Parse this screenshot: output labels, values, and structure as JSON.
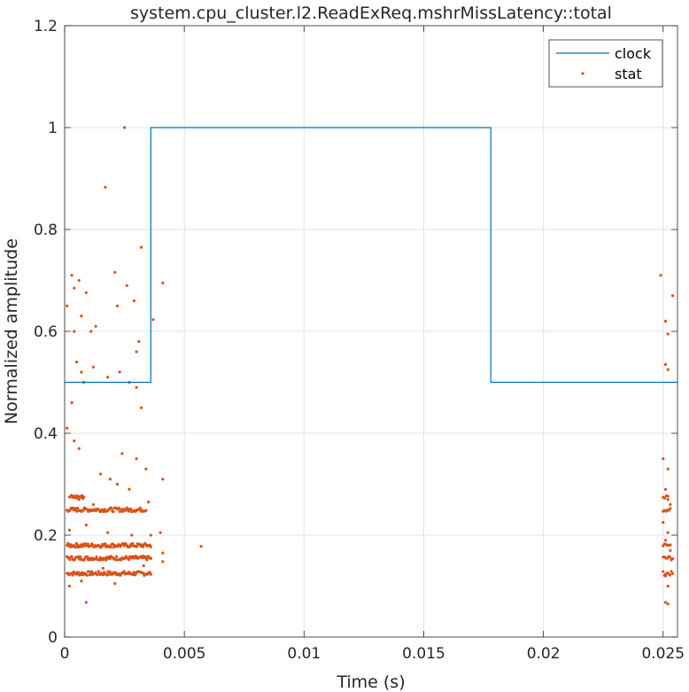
{
  "chart_data": {
    "type": "line",
    "title": "system.cpu_cluster.l2.ReadExReq.mshrMissLatency::total",
    "xlabel": "Time (s)",
    "ylabel": "Normalized amplitude",
    "xlim": [
      0,
      0.0256
    ],
    "ylim": [
      0,
      1.2
    ],
    "x_ticks": [
      0,
      0.005,
      0.01,
      0.015,
      0.02,
      0.025
    ],
    "x_tick_labels": [
      "0",
      "0.005",
      "0.01",
      "0.015",
      "0.02",
      "0.025"
    ],
    "y_ticks": [
      0,
      0.2,
      0.4,
      0.6,
      0.8,
      1.0,
      1.2
    ],
    "y_tick_labels": [
      "0",
      "0.2",
      "0.4",
      "0.6",
      "0.8",
      "1",
      "1.2"
    ],
    "grid": true,
    "legend_position": "top-right",
    "colors": {
      "clock": "#0072bd",
      "stat": "#d95319"
    },
    "series": [
      {
        "name": "clock",
        "kind": "step-line",
        "x": [
          0,
          0.0036,
          0.0036,
          0.0178,
          0.0178,
          0.0256
        ],
        "y": [
          0.5,
          0.5,
          1.0,
          1.0,
          0.5,
          0.5
        ]
      },
      {
        "name": "stat",
        "kind": "scatter",
        "points": [
          [
            0.0025,
            1.0
          ],
          [
            0.0017,
            0.883
          ],
          [
            0.0021,
            0.716
          ],
          [
            0.0032,
            0.765
          ],
          [
            0.0041,
            0.695
          ],
          [
            0.0037,
            0.623
          ],
          [
            0.0001,
            0.65
          ],
          [
            0.0003,
            0.71
          ],
          [
            0.0004,
            0.685
          ],
          [
            0.0006,
            0.7
          ],
          [
            0.0009,
            0.676
          ],
          [
            0.0011,
            0.6
          ],
          [
            0.0004,
            0.6
          ],
          [
            0.0007,
            0.63
          ],
          [
            0.0013,
            0.61
          ],
          [
            0.0022,
            0.65
          ],
          [
            0.0026,
            0.69
          ],
          [
            0.0029,
            0.66
          ],
          [
            0.0031,
            0.58
          ],
          [
            0.003,
            0.56
          ],
          [
            0.0005,
            0.54
          ],
          [
            0.0007,
            0.52
          ],
          [
            0.0012,
            0.53
          ],
          [
            0.0018,
            0.51
          ],
          [
            0.0023,
            0.52
          ],
          [
            0.0008,
            0.5
          ],
          [
            0.003,
            0.49
          ],
          [
            0.0027,
            0.5
          ],
          [
            0.0003,
            0.46
          ],
          [
            0.0032,
            0.45
          ],
          [
            0.0001,
            0.41
          ],
          [
            0.0004,
            0.385
          ],
          [
            0.0006,
            0.37
          ],
          [
            0.0024,
            0.36
          ],
          [
            0.003,
            0.35
          ],
          [
            0.0034,
            0.33
          ],
          [
            0.0015,
            0.32
          ],
          [
            0.0019,
            0.31
          ],
          [
            0.0022,
            0.3
          ],
          [
            0.0041,
            0.31
          ],
          [
            0.0027,
            0.29
          ],
          [
            0.0006,
            0.27
          ],
          [
            0.0012,
            0.26
          ],
          [
            0.0035,
            0.265
          ],
          [
            0.0002,
            0.21
          ],
          [
            0.0009,
            0.22
          ],
          [
            0.0018,
            0.205
          ],
          [
            0.0028,
            0.2
          ],
          [
            0.004,
            0.205
          ],
          [
            0.0036,
            0.2
          ],
          [
            0.0057,
            0.178
          ],
          [
            0.0041,
            0.165
          ],
          [
            0.0041,
            0.148
          ],
          [
            0.0002,
            0.1
          ],
          [
            0.0009,
            0.068
          ],
          [
            0.0021,
            0.105
          ],
          [
            0.0007,
            0.11
          ],
          [
            0.0016,
            0.135
          ],
          [
            0.0033,
            0.14
          ],
          [
            0.0249,
            0.71
          ],
          [
            0.0254,
            0.67
          ],
          [
            0.0251,
            0.62
          ],
          [
            0.0252,
            0.595
          ],
          [
            0.0251,
            0.535
          ],
          [
            0.0252,
            0.525
          ],
          [
            0.025,
            0.35
          ],
          [
            0.0252,
            0.33
          ],
          [
            0.0251,
            0.29
          ],
          [
            0.0252,
            0.27
          ],
          [
            0.0253,
            0.26
          ],
          [
            0.025,
            0.225
          ],
          [
            0.0252,
            0.205
          ],
          [
            0.0251,
            0.19
          ],
          [
            0.0253,
            0.17
          ],
          [
            0.0251,
            0.12
          ],
          [
            0.0252,
            0.1
          ],
          [
            0.0251,
            0.068
          ],
          [
            0.0252,
            0.065
          ]
        ],
        "bands": [
          {
            "y": 0.125,
            "x_start": 0.0001,
            "x_end": 0.0036,
            "x_start_2": 0.025,
            "x_end_2": 0.0254
          },
          {
            "y": 0.155,
            "x_start": 0.0001,
            "x_end": 0.0036,
            "x_start_2": 0.025,
            "x_end_2": 0.0254
          },
          {
            "y": 0.18,
            "x_start": 0.0001,
            "x_end": 0.0036,
            "x_start_2": 0.025,
            "x_end_2": 0.0253
          },
          {
            "y": 0.25,
            "x_start": 0.0001,
            "x_end": 0.0034,
            "x_start_2": 0.025,
            "x_end_2": 0.0253
          },
          {
            "y": 0.275,
            "x_start": 0.0002,
            "x_end": 0.0008,
            "x_start_2": 0.025,
            "x_end_2": 0.0252
          }
        ]
      }
    ]
  }
}
